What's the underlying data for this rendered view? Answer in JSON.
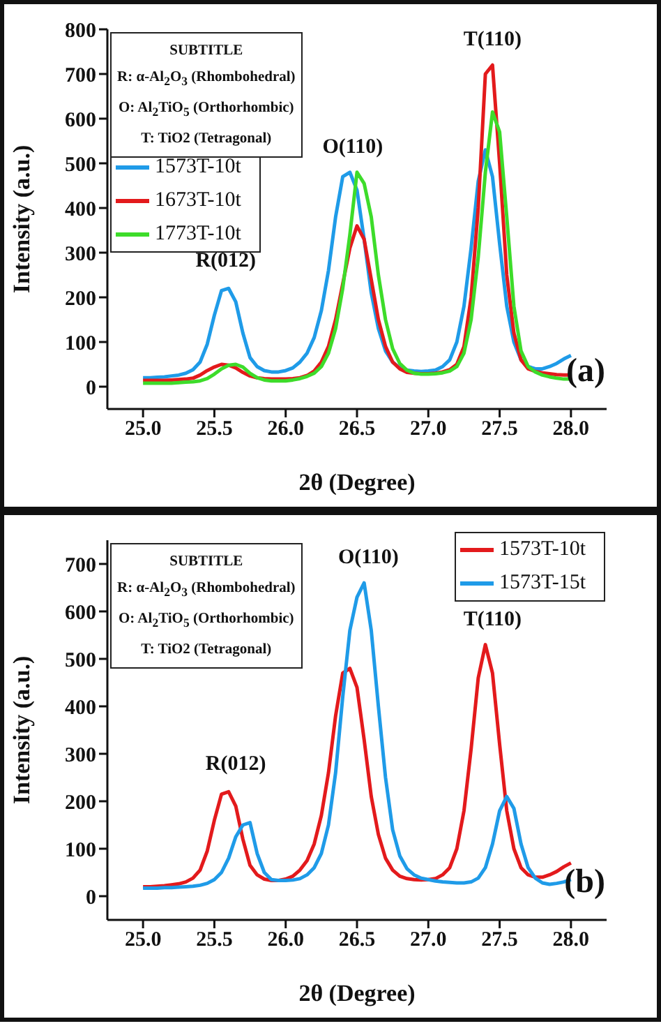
{
  "chart_data": [
    {
      "type": "line",
      "title": "(a)",
      "subtitle": "SUBTITLE",
      "xlabel": "2θ (Degree)",
      "ylabel": "Intensity (a.u.)",
      "annotations": [
        "R: α-Al$_{2}$O$_{3}$ (Rhombohedral)",
        "O: Al$_{2}$TiO$_{5}$ (Orthorhombic)",
        "T: TiO2 (Tetragonal)",
        {
          "text": "R(012)",
          "x": 25.58,
          "y": 225
        },
        {
          "text": "O(110)",
          "x": 26.47,
          "y": 480
        },
        {
          "text": "T(110)",
          "x": 27.45,
          "y": 720
        }
      ],
      "x": [
        25.0,
        25.05,
        25.1,
        25.15,
        25.2,
        25.25,
        25.3,
        25.35,
        25.4,
        25.45,
        25.5,
        25.55,
        25.6,
        25.65,
        25.7,
        25.75,
        25.8,
        25.85,
        25.9,
        25.95,
        26.0,
        26.05,
        26.1,
        26.15,
        26.2,
        26.25,
        26.3,
        26.35,
        26.4,
        26.45,
        26.5,
        26.55,
        26.6,
        26.65,
        26.7,
        26.75,
        26.8,
        26.85,
        26.9,
        26.95,
        27.0,
        27.05,
        27.1,
        27.15,
        27.2,
        27.25,
        27.3,
        27.35,
        27.4,
        27.45,
        27.5,
        27.55,
        27.6,
        27.65,
        27.7,
        27.75,
        27.8,
        27.85,
        27.9,
        27.95,
        28.0
      ],
      "series": [
        {
          "name": "1573T-10t",
          "color": "#1f9be8",
          "values": [
            20,
            20,
            21,
            22,
            24,
            26,
            30,
            38,
            55,
            95,
            160,
            215,
            220,
            190,
            120,
            65,
            45,
            36,
            33,
            33,
            36,
            42,
            55,
            75,
            110,
            170,
            260,
            380,
            470,
            480,
            440,
            330,
            210,
            130,
            80,
            55,
            42,
            37,
            35,
            34,
            35,
            37,
            45,
            60,
            100,
            180,
            310,
            460,
            530,
            470,
            320,
            180,
            100,
            60,
            45,
            40,
            40,
            45,
            52,
            62,
            70
          ]
        },
        {
          "name": "1673T-10t",
          "color": "#e31a1c",
          "values": [
            14,
            14,
            14,
            14,
            15,
            16,
            17,
            19,
            26,
            36,
            44,
            50,
            48,
            42,
            32,
            24,
            20,
            18,
            17,
            17,
            17,
            18,
            20,
            25,
            35,
            55,
            90,
            150,
            230,
            310,
            360,
            330,
            240,
            150,
            90,
            55,
            40,
            32,
            30,
            29,
            29,
            30,
            33,
            38,
            50,
            90,
            200,
            400,
            700,
            720,
            500,
            250,
            120,
            60,
            40,
            34,
            31,
            29,
            27,
            26,
            26
          ]
        },
        {
          "name": "1773T-10t",
          "color": "#3ddc2a",
          "values": [
            8,
            8,
            8,
            8,
            8,
            9,
            10,
            11,
            13,
            18,
            28,
            40,
            48,
            50,
            44,
            30,
            20,
            15,
            13,
            13,
            13,
            15,
            18,
            23,
            30,
            45,
            75,
            130,
            220,
            340,
            480,
            455,
            380,
            250,
            150,
            85,
            52,
            37,
            30,
            28,
            28,
            29,
            31,
            35,
            45,
            75,
            150,
            290,
            480,
            615,
            570,
            380,
            180,
            80,
            45,
            33,
            26,
            22,
            19,
            17,
            17
          ]
        }
      ],
      "xlim": [
        24.75,
        28.25
      ],
      "xticks": [
        {
          "value": 25,
          "label": "25.0"
        },
        {
          "value": 25.5,
          "label": "25.5"
        },
        {
          "value": 26,
          "label": "26.0"
        },
        {
          "value": 26.5,
          "label": "26.5"
        },
        {
          "value": 27,
          "label": "27.0"
        },
        {
          "value": 27.5,
          "label": "27.5"
        },
        {
          "value": 28,
          "label": "28.0"
        }
      ],
      "ylim": [
        -50,
        800
      ],
      "yticks": [
        0,
        100,
        200,
        300,
        400,
        500,
        600,
        700,
        800
      ],
      "legend": "top left",
      "grid": false,
      "marker": "none",
      "line_style": "solid"
    },
    {
      "type": "line",
      "title": "(b)",
      "subtitle": "SUBTITLE",
      "xlabel": "2θ (Degree)",
      "ylabel": "Intensity (a.u.)",
      "annotations": [
        "R: α-Al$_{2}$O$_{3}$ (Rhombohedral)",
        "O: Al$_{2}$TiO$_{5}$ (Orthorhombic)",
        "T: TiO2 (Tetragonal)",
        {
          "text": "R(012)",
          "x": 25.65,
          "y": 225
        },
        {
          "text": "O(110)",
          "x": 26.58,
          "y": 660
        },
        {
          "text": "T(110)",
          "x": 27.45,
          "y": 530
        }
      ],
      "x": [
        25.0,
        25.05,
        25.1,
        25.15,
        25.2,
        25.25,
        25.3,
        25.35,
        25.4,
        25.45,
        25.5,
        25.55,
        25.6,
        25.65,
        25.7,
        25.75,
        25.8,
        25.85,
        25.9,
        25.95,
        26.0,
        26.05,
        26.1,
        26.15,
        26.2,
        26.25,
        26.3,
        26.35,
        26.4,
        26.45,
        26.5,
        26.55,
        26.6,
        26.65,
        26.7,
        26.75,
        26.8,
        26.85,
        26.9,
        26.95,
        27.0,
        27.05,
        27.1,
        27.15,
        27.2,
        27.25,
        27.3,
        27.35,
        27.4,
        27.45,
        27.5,
        27.55,
        27.6,
        27.65,
        27.7,
        27.75,
        27.8,
        27.85,
        27.9,
        27.95,
        28.0
      ],
      "series": [
        {
          "name": "1573T-10t",
          "color": "#e31a1c",
          "values": [
            20,
            20,
            21,
            22,
            24,
            26,
            30,
            38,
            55,
            95,
            160,
            215,
            220,
            190,
            120,
            65,
            45,
            36,
            33,
            33,
            36,
            42,
            55,
            75,
            110,
            170,
            260,
            380,
            470,
            480,
            440,
            330,
            210,
            130,
            80,
            55,
            42,
            37,
            35,
            34,
            35,
            37,
            45,
            60,
            100,
            180,
            310,
            460,
            530,
            470,
            320,
            180,
            100,
            60,
            45,
            40,
            40,
            45,
            52,
            62,
            70
          ]
        },
        {
          "name": "1573T-15t",
          "color": "#1f9be8",
          "values": [
            17,
            17,
            17,
            18,
            18,
            19,
            20,
            21,
            23,
            27,
            35,
            50,
            80,
            125,
            150,
            155,
            90,
            50,
            35,
            33,
            33,
            34,
            37,
            45,
            60,
            90,
            150,
            260,
            420,
            560,
            630,
            660,
            560,
            400,
            250,
            140,
            85,
            58,
            45,
            38,
            35,
            32,
            30,
            29,
            28,
            28,
            30,
            38,
            60,
            110,
            180,
            210,
            185,
            110,
            60,
            38,
            28,
            25,
            27,
            30,
            35
          ]
        }
      ],
      "xlim": [
        24.75,
        28.25
      ],
      "xticks": [
        {
          "value": 25,
          "label": "25.0"
        },
        {
          "value": 25.5,
          "label": "25.5"
        },
        {
          "value": 26,
          "label": "26.0"
        },
        {
          "value": 26.5,
          "label": "26.5"
        },
        {
          "value": 27,
          "label": "27.0"
        },
        {
          "value": 27.5,
          "label": "27.5"
        },
        {
          "value": 28,
          "label": "28.0"
        }
      ],
      "ylim": [
        -50,
        750
      ],
      "yticks": [
        0,
        100,
        200,
        300,
        400,
        500,
        600,
        700
      ],
      "legend": "top right",
      "grid": false,
      "marker": "none",
      "line_style": "solid"
    }
  ]
}
